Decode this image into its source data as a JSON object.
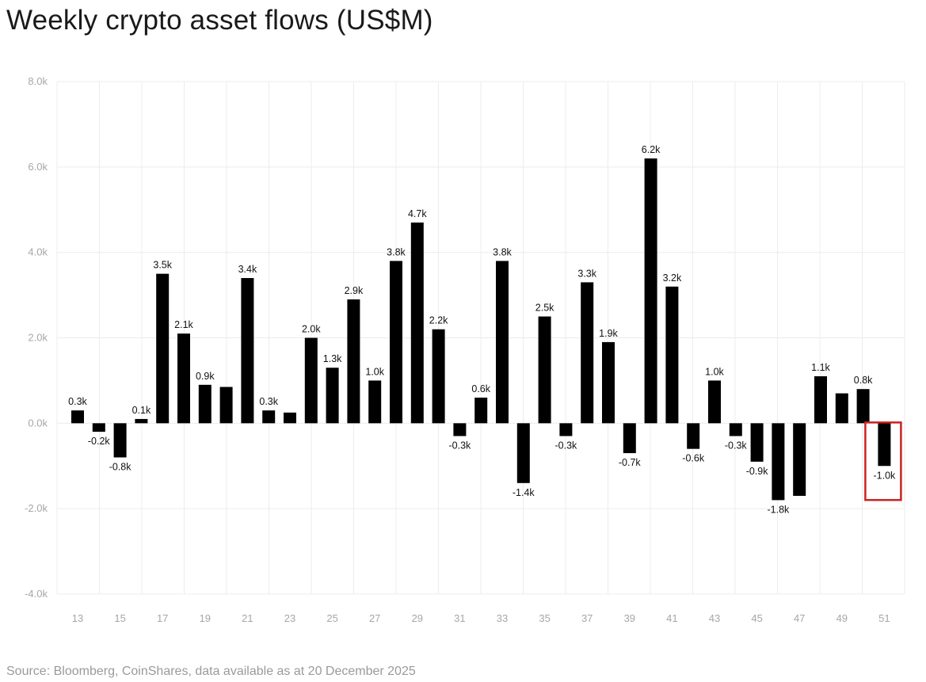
{
  "title": "Weekly crypto asset flows (US$M)",
  "source": "Source: Bloomberg, CoinShares, data available as at 20 December 2025",
  "chart_data": {
    "type": "bar",
    "title": "Weekly crypto asset flows (US$M)",
    "xlabel": "",
    "ylabel": "",
    "ylim": [
      -4000,
      8000
    ],
    "grid": true,
    "legend": "none",
    "y_ticks": [
      "8.0k",
      "6.0k",
      "4.0k",
      "2.0k",
      "0.0k",
      "-2.0k",
      "-4.0k"
    ],
    "y_tick_values": [
      8000,
      6000,
      4000,
      2000,
      0,
      -2000,
      -4000
    ],
    "x_tick_labels": [
      "13",
      "15",
      "17",
      "19",
      "21",
      "23",
      "25",
      "27",
      "29",
      "31",
      "33",
      "35",
      "37",
      "39",
      "41",
      "43",
      "45",
      "47",
      "49",
      "51"
    ],
    "categories": [
      13,
      14,
      15,
      16,
      17,
      18,
      19,
      20,
      21,
      22,
      23,
      24,
      25,
      26,
      27,
      28,
      29,
      30,
      31,
      32,
      33,
      34,
      35,
      36,
      37,
      38,
      39,
      40,
      41,
      42,
      43,
      44,
      45,
      46,
      47,
      48,
      49,
      50,
      51
    ],
    "values": [
      300,
      -200,
      -800,
      100,
      3500,
      2100,
      900,
      850,
      3400,
      300,
      250,
      2000,
      1300,
      2900,
      1000,
      3800,
      4700,
      2200,
      -300,
      600,
      3800,
      -1400,
      2500,
      -300,
      3300,
      1900,
      -700,
      6200,
      3200,
      -600,
      1000,
      -300,
      -900,
      -1800,
      -1700,
      1100,
      700,
      800,
      -1000
    ],
    "data_labels": [
      "0.3k",
      "-0.2k",
      "-0.8k",
      "0.1k",
      "3.5k",
      "2.1k",
      "0.9k",
      "",
      "3.4k",
      "0.3k",
      "",
      "2.0k",
      "1.3k",
      "2.9k",
      "1.0k",
      "3.8k",
      "4.7k",
      "2.2k",
      "-0.3k",
      "0.6k",
      "3.8k",
      "-1.4k",
      "2.5k",
      "-0.3k",
      "3.3k",
      "1.9k",
      "-0.7k",
      "6.2k",
      "3.2k",
      "-0.6k",
      "1.0k",
      "-0.3k",
      "-0.9k",
      "-1.8k",
      "",
      "1.1k",
      "",
      "0.8k",
      "-1.0k"
    ],
    "highlight": {
      "category": 51,
      "color": "#cc2222"
    },
    "bar_color": "#000000",
    "grid_color": "#ececec",
    "tick_color": "#a6a6a6"
  }
}
